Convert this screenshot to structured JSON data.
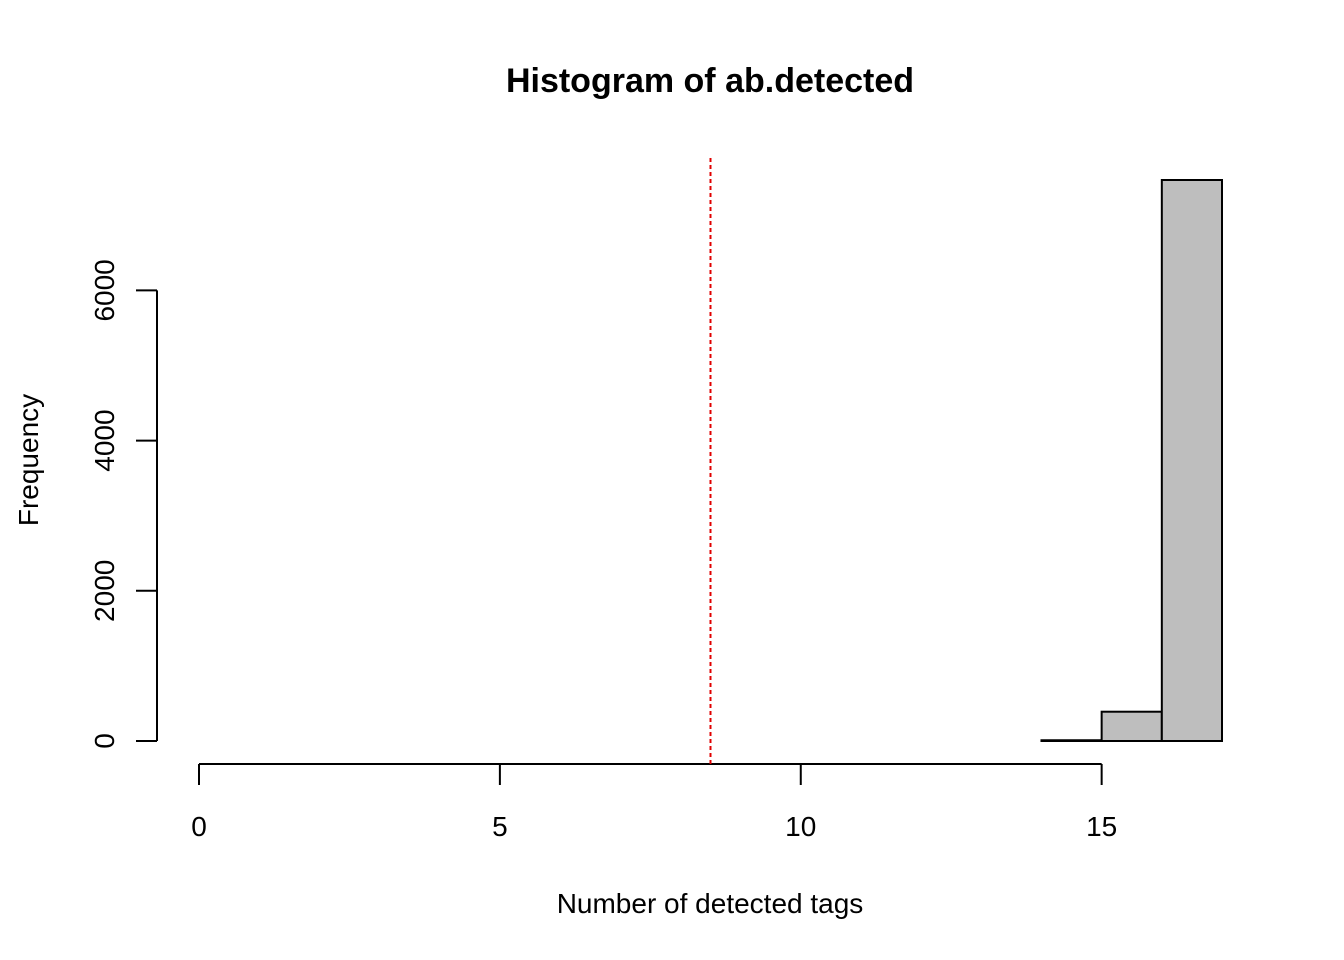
{
  "chart_data": {
    "type": "bar",
    "title": "Histogram of ab.detected",
    "xlabel": "Number of detected tags",
    "ylabel": "Frequency",
    "bins": [
      {
        "start": 0,
        "end": 1,
        "count": 0
      },
      {
        "start": 1,
        "end": 2,
        "count": 0
      },
      {
        "start": 2,
        "end": 3,
        "count": 0
      },
      {
        "start": 3,
        "end": 4,
        "count": 0
      },
      {
        "start": 4,
        "end": 5,
        "count": 0
      },
      {
        "start": 5,
        "end": 6,
        "count": 0
      },
      {
        "start": 6,
        "end": 7,
        "count": 0
      },
      {
        "start": 7,
        "end": 8,
        "count": 0
      },
      {
        "start": 8,
        "end": 9,
        "count": 0
      },
      {
        "start": 9,
        "end": 10,
        "count": 0
      },
      {
        "start": 10,
        "end": 11,
        "count": 0
      },
      {
        "start": 11,
        "end": 12,
        "count": 0
      },
      {
        "start": 12,
        "end": 13,
        "count": 0
      },
      {
        "start": 13,
        "end": 14,
        "count": 0
      },
      {
        "start": 14,
        "end": 15,
        "count": 10
      },
      {
        "start": 15,
        "end": 16,
        "count": 390
      },
      {
        "start": 16,
        "end": 17,
        "count": 7470
      }
    ],
    "xlim": [
      0,
      17
    ],
    "ylim": [
      0,
      7470
    ],
    "xticks": [
      0,
      5,
      10,
      15
    ],
    "yticks": [
      0,
      2000,
      4000,
      6000
    ],
    "threshold_line": {
      "x": 8.5,
      "color": "#e00000",
      "style": "dashed"
    },
    "bar_fill": "#bebebe",
    "bar_stroke": "#000000",
    "grid": false
  }
}
